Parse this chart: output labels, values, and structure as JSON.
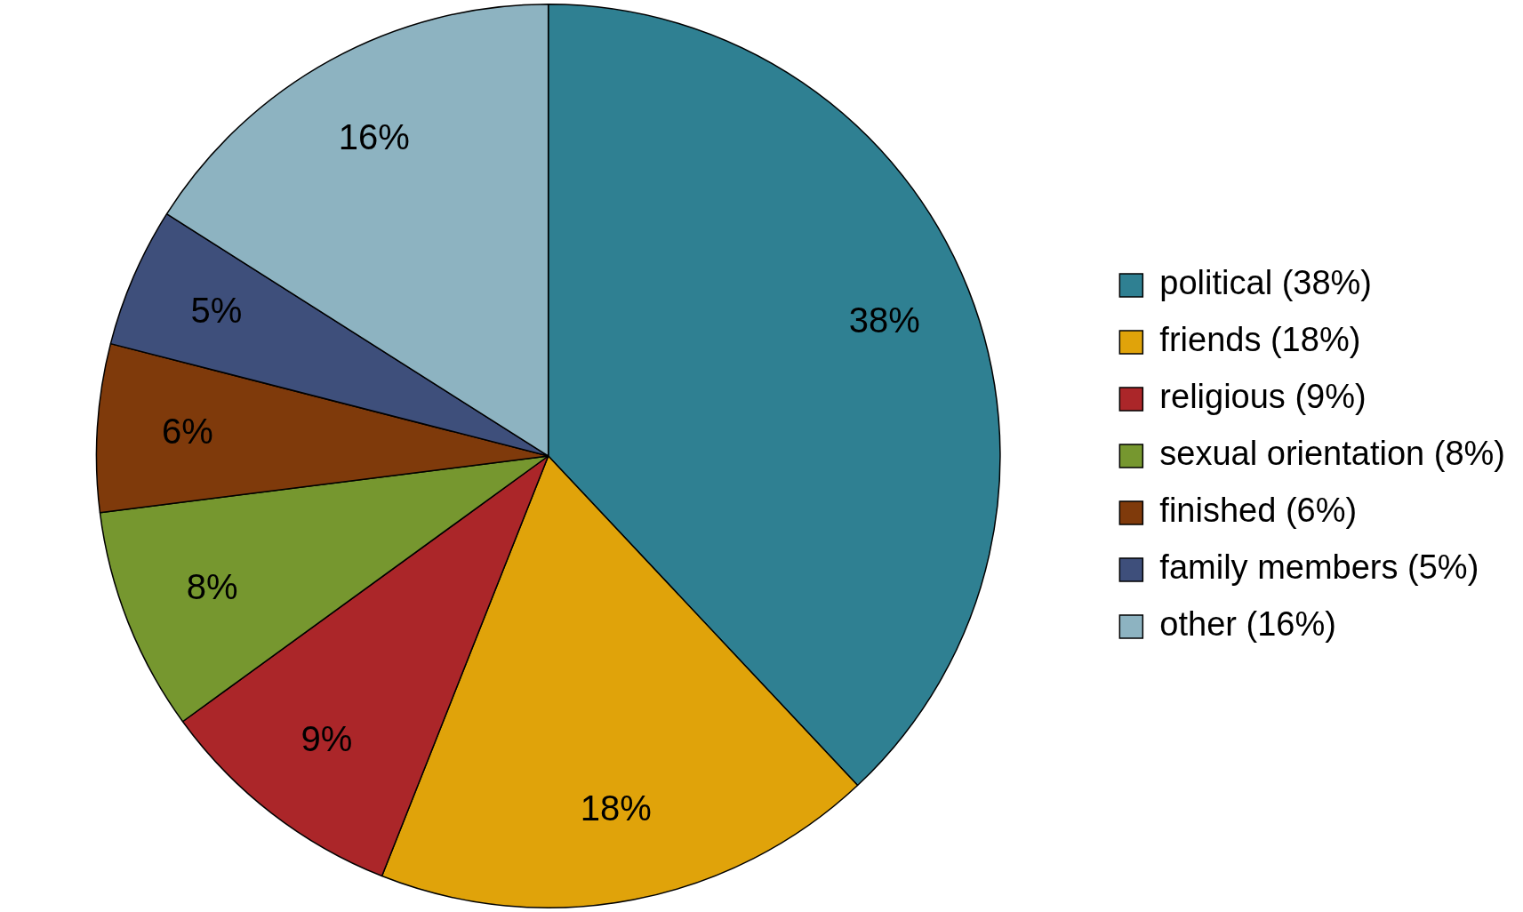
{
  "chart_data": {
    "type": "pie",
    "categories": [
      "political (38%)",
      "friends (18%)",
      "religious (9%)",
      "sexual orientation (8%)",
      "finished (6%)",
      "family members (5%)",
      "other (16%)"
    ],
    "values": [
      38,
      18,
      9,
      8,
      6,
      5,
      16
    ],
    "colors": [
      "#2f8092",
      "#e0a30a",
      "#ab2629",
      "#76972f",
      "#7f3a0b",
      "#3e4f7b",
      "#8db3c1"
    ],
    "value_labels": [
      "38%",
      "18%",
      "9%",
      "8%",
      "6%",
      "5%",
      "16%"
    ],
    "legend": "right"
  }
}
